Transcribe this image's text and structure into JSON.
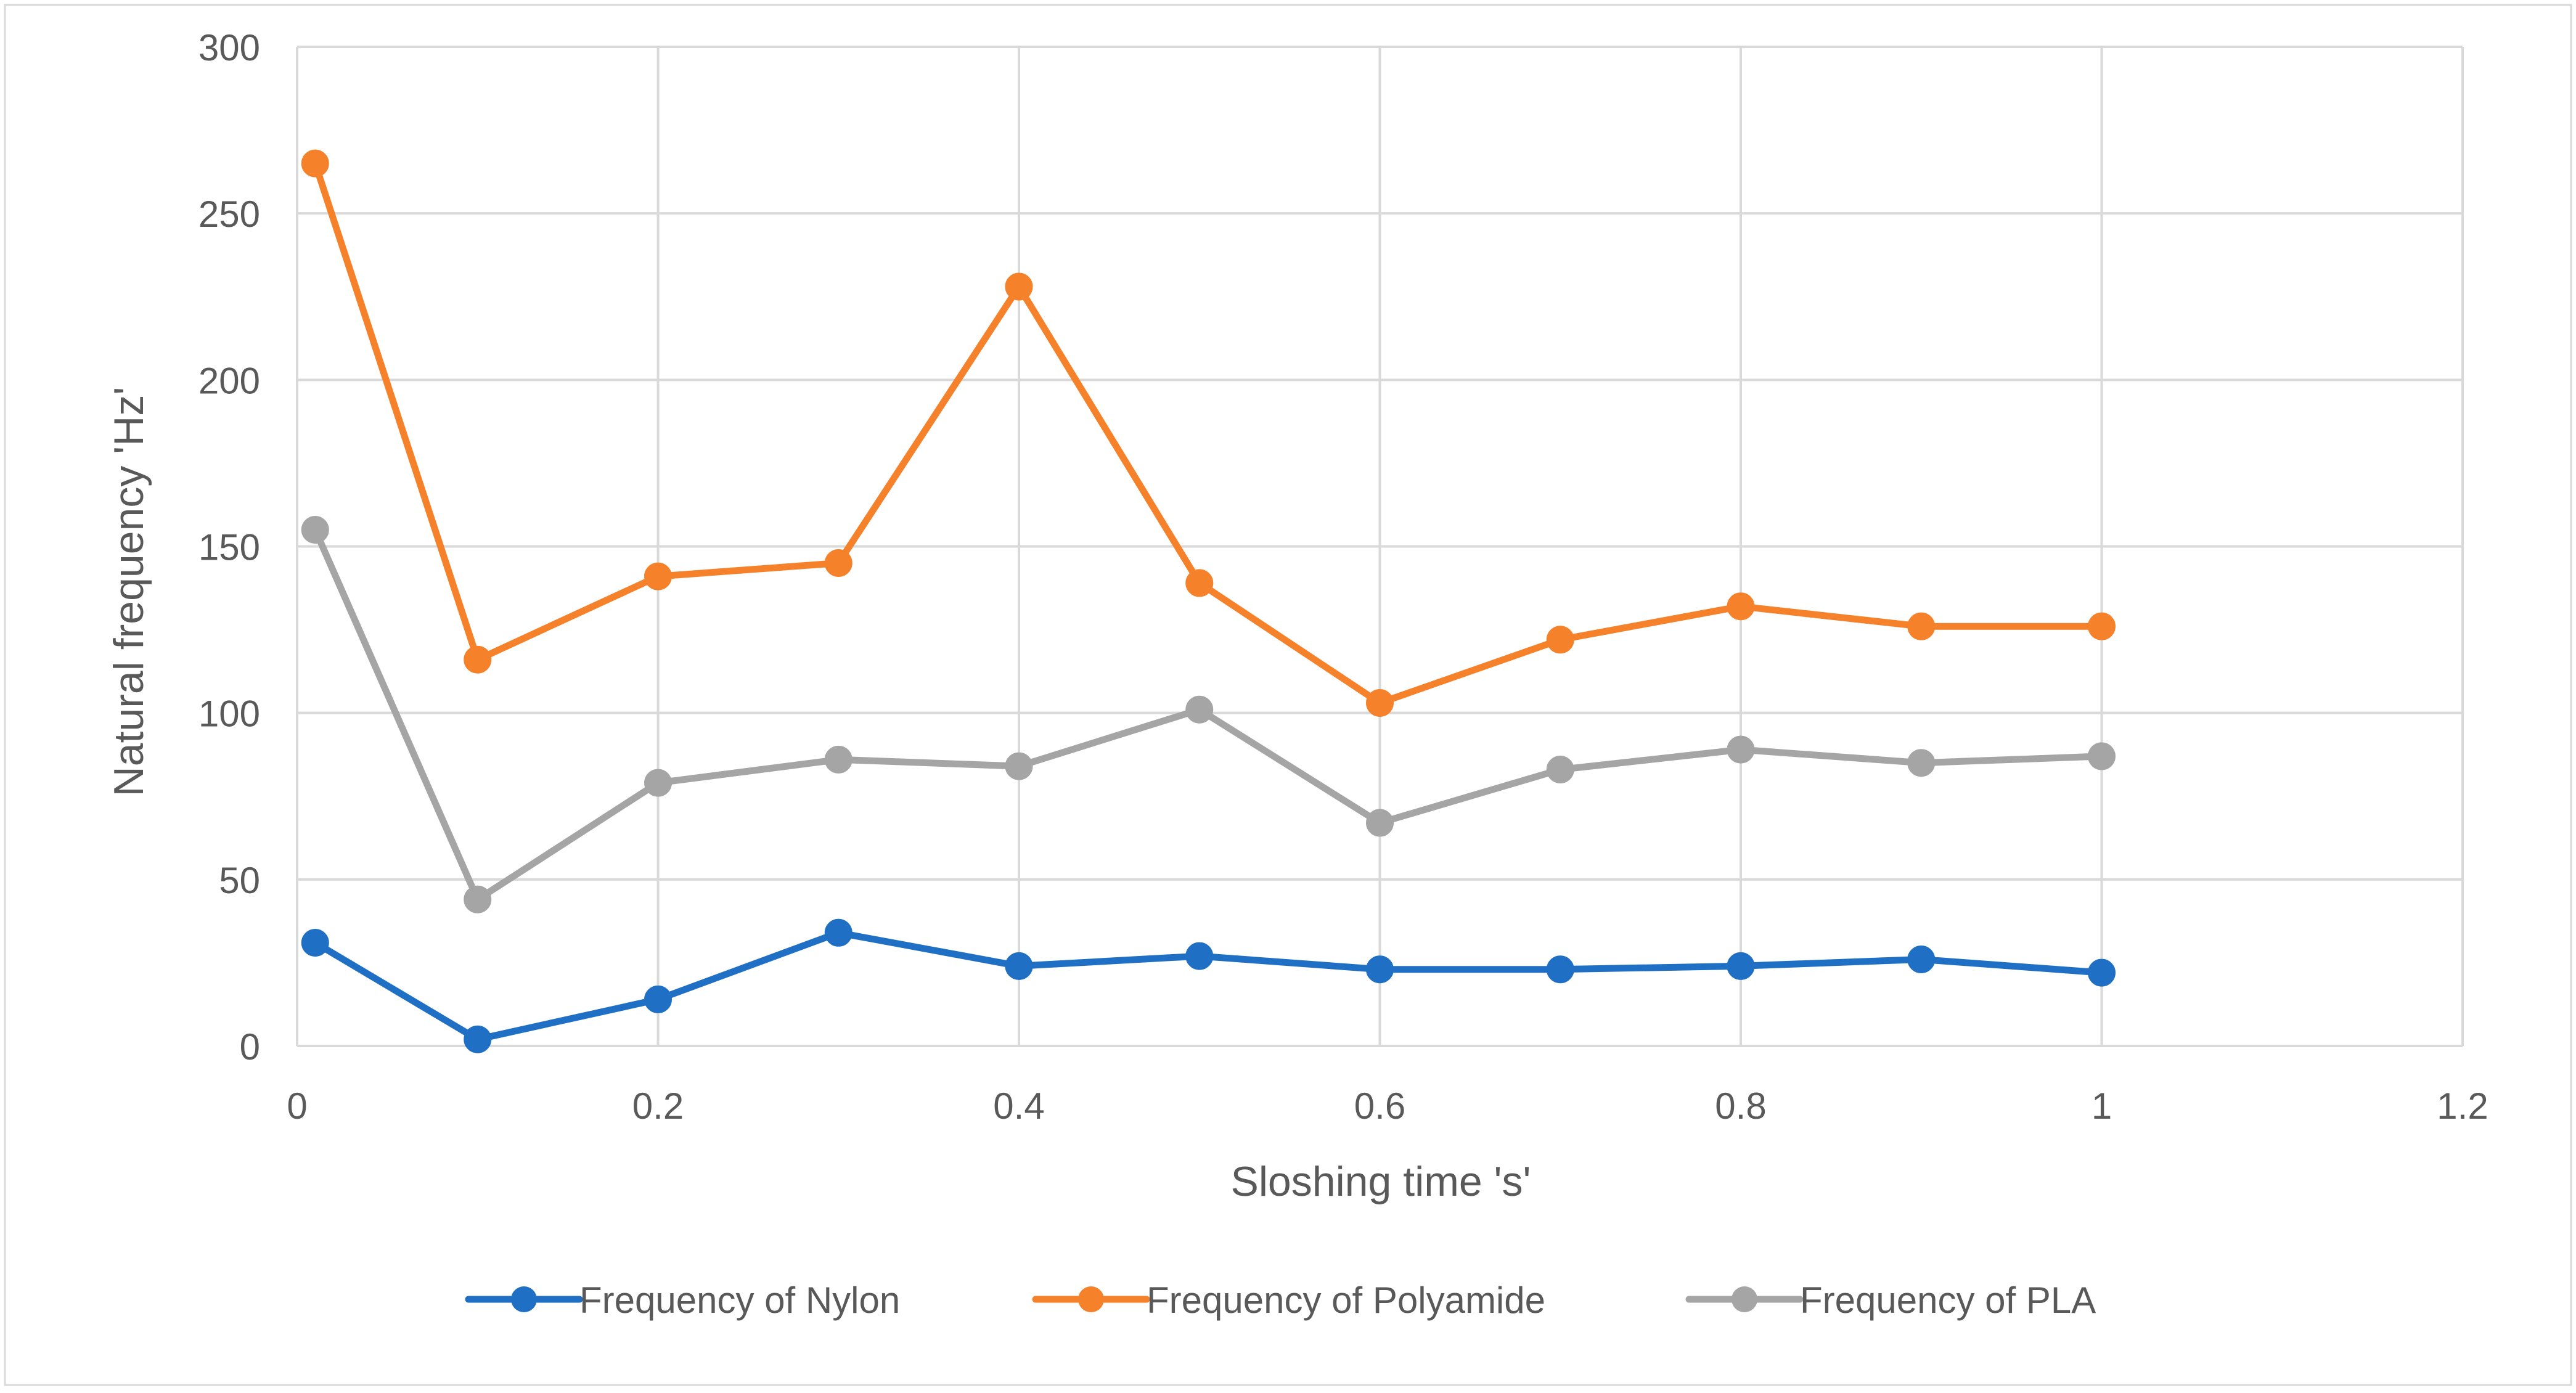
{
  "chart_data": {
    "type": "line",
    "title": "",
    "xlabel": "Sloshing time 's'",
    "ylabel": "Natural frequency 'Hz'",
    "xlim": [
      0,
      1.2
    ],
    "ylim": [
      0,
      300
    ],
    "x_ticks": [
      0,
      0.2,
      0.4,
      0.6,
      0.8,
      1,
      1.2
    ],
    "x_tick_labels": [
      "0",
      "0.2",
      "0.4",
      "0.6",
      "0.8",
      "1",
      "1.2"
    ],
    "y_ticks": [
      0,
      50,
      100,
      150,
      200,
      250,
      300
    ],
    "y_tick_labels": [
      "0",
      "50",
      "100",
      "150",
      "200",
      "250",
      "300"
    ],
    "grid": true,
    "legend_position": "bottom",
    "x": [
      0.01,
      0.1,
      0.2,
      0.3,
      0.4,
      0.5,
      0.6,
      0.7,
      0.8,
      0.9,
      1.0
    ],
    "series": [
      {
        "name": "Frequency of Nylon",
        "color": "#1f6fc5",
        "values": [
          31,
          2,
          14,
          34,
          24,
          27,
          23,
          23,
          24,
          26,
          22
        ]
      },
      {
        "name": "Frequency of Polyamide",
        "color": "#f5822a",
        "values": [
          265,
          116,
          141,
          145,
          228,
          139,
          103,
          122,
          132,
          126,
          126
        ]
      },
      {
        "name": "Frequency of PLA",
        "color": "#a5a5a5",
        "values": [
          155,
          44,
          79,
          86,
          84,
          101,
          67,
          83,
          89,
          85,
          87
        ]
      }
    ]
  }
}
